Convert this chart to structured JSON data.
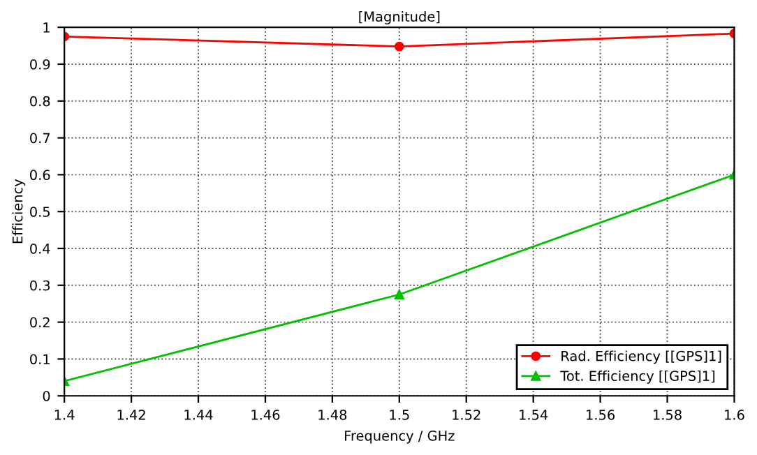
{
  "chart_data": {
    "type": "line",
    "title": "[Magnitude]",
    "xlabel": "Frequency / GHz",
    "ylabel": "Efficiency",
    "x": [
      1.4,
      1.5,
      1.6
    ],
    "series": [
      {
        "name": "Rad. Efficiency [[GPS]1]",
        "color": "#ff0000",
        "marker": "circle",
        "values": [
          0.975,
          0.948,
          0.983
        ]
      },
      {
        "name": "Tot. Efficiency [[GPS]1]",
        "color": "#00c000",
        "marker": "triangle",
        "values": [
          0.04,
          0.275,
          0.6
        ]
      }
    ],
    "xlim": [
      1.4,
      1.6
    ],
    "xticks": [
      1.4,
      1.42,
      1.44,
      1.46,
      1.48,
      1.5,
      1.52,
      1.54,
      1.56,
      1.58,
      1.6
    ],
    "ylim": [
      0,
      1
    ],
    "yticks": [
      0,
      0.1,
      0.2,
      0.3,
      0.4,
      0.5,
      0.6,
      0.7,
      0.8,
      0.9,
      1
    ],
    "grid": true,
    "legend": "bottom right",
    "line_style": "solid"
  }
}
